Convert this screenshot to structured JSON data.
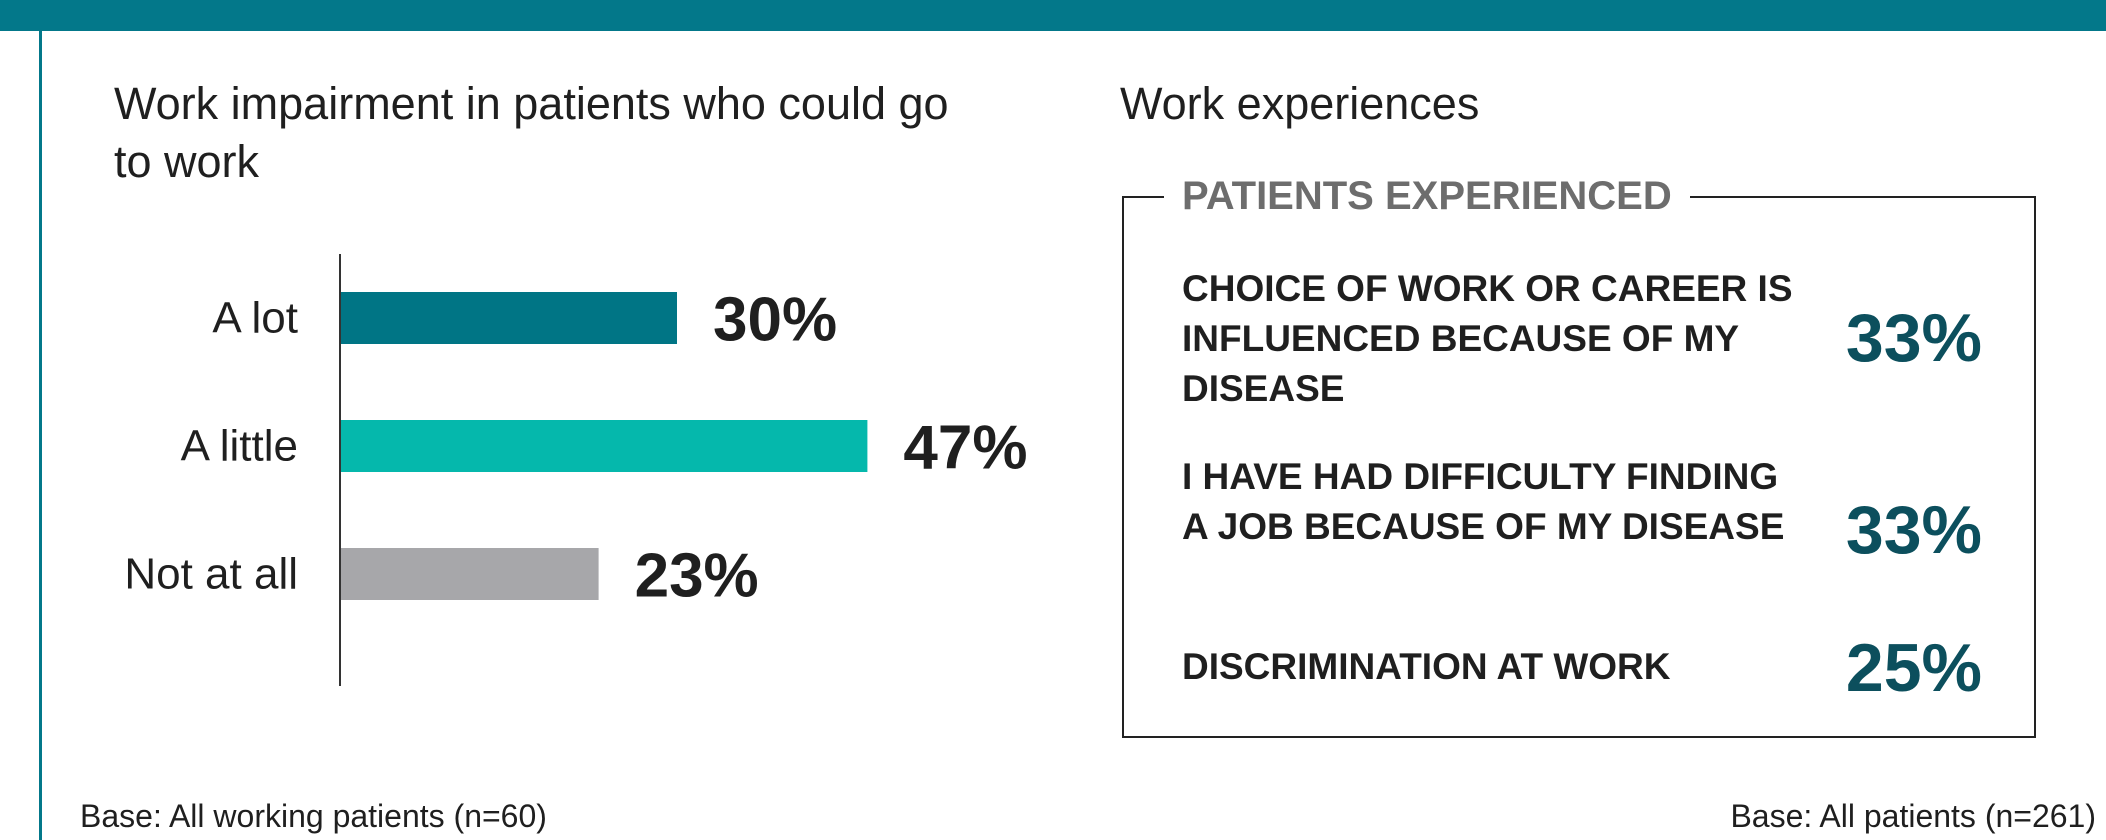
{
  "colors": {
    "header": "#03788a",
    "a_lot": "#007585",
    "a_little": "#05b8ac",
    "not_at_all": "#a7a7aa",
    "value_accent": "#0c4f5d"
  },
  "left_panel": {
    "title": "Work impairment in patients who could go to work",
    "base": "Base: All working patients (n=60)"
  },
  "chart_data": {
    "type": "bar",
    "orientation": "horizontal",
    "title": "Work impairment in patients who could go to work",
    "categories": [
      "A lot",
      "A little",
      "Not at all"
    ],
    "values": [
      30,
      47,
      23
    ],
    "value_labels": [
      "30%",
      "47%",
      "23%"
    ],
    "unit": "%",
    "xlim": [
      0,
      100
    ],
    "grid": false,
    "legend": "none"
  },
  "right_panel": {
    "title": "Work experiences",
    "box_heading": "PATIENTS EXPERIENCED",
    "items": [
      {
        "label": "CHOICE OF WORK OR CAREER IS INFLUENCED BECAUSE OF MY DISEASE",
        "value": "33%"
      },
      {
        "label": "I HAVE HAD DIFFICULTY FINDING A JOB BECAUSE OF MY DISEASE",
        "value": "33%"
      },
      {
        "label": "DISCRIMINATION AT WORK",
        "value": "25%"
      }
    ],
    "base": "Base: All patients (n=261)"
  }
}
